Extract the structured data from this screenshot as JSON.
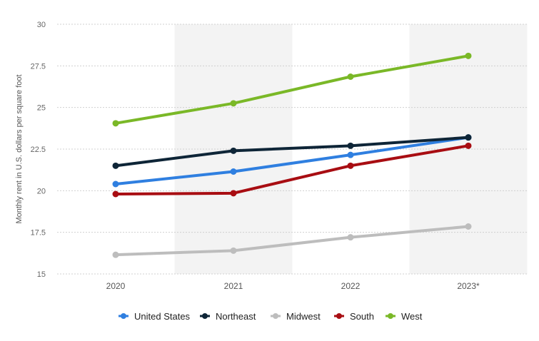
{
  "chart_data": {
    "type": "line",
    "title": "",
    "xlabel": "",
    "ylabel": "Monthly rent in U.S. dollars per square foot",
    "categories": [
      "2020",
      "2021",
      "2022",
      "2023*"
    ],
    "ylim": [
      15,
      30
    ],
    "yticks": [
      "15",
      "17.5",
      "20",
      "22.5",
      "25",
      "27.5",
      "30"
    ],
    "grid": true,
    "legend_position": "bottom",
    "series": [
      {
        "name": "United States",
        "color": "#2f7fe0",
        "values": [
          20.4,
          21.15,
          22.15,
          23.2
        ]
      },
      {
        "name": "Northeast",
        "color": "#0e2537",
        "values": [
          21.5,
          22.4,
          22.7,
          23.2
        ]
      },
      {
        "name": "Midwest",
        "color": "#bdbdbd",
        "values": [
          16.15,
          16.4,
          17.2,
          17.85
        ]
      },
      {
        "name": "South",
        "color": "#a80d12",
        "values": [
          19.8,
          19.85,
          21.5,
          22.7
        ]
      },
      {
        "name": "West",
        "color": "#7ab827",
        "values": [
          24.05,
          25.25,
          26.85,
          28.1
        ]
      }
    ]
  }
}
